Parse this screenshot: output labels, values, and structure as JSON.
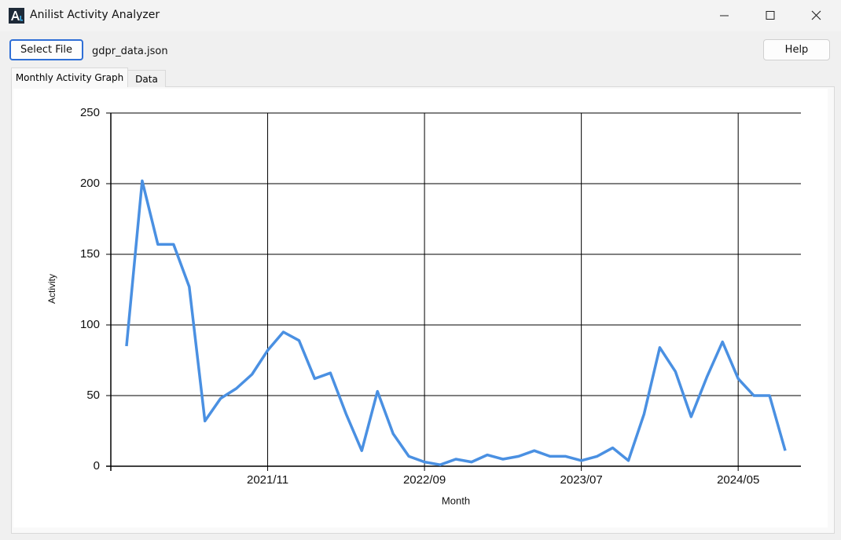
{
  "window": {
    "title": "Anilist Activity Analyzer"
  },
  "toolbar": {
    "select_button": "Select File",
    "file_name": "gdpr_data.json",
    "help_button": "Help"
  },
  "tabs": [
    "Monthly Activity Graph",
    "Data"
  ],
  "chart_data": {
    "type": "line",
    "x_label": "Month",
    "y_label": "Activity",
    "categories": [
      null,
      null,
      null,
      null,
      null,
      null,
      null,
      null,
      null,
      "2021/11",
      null,
      null,
      null,
      null,
      null,
      null,
      null,
      null,
      null,
      "2022/09",
      null,
      null,
      null,
      null,
      null,
      null,
      null,
      null,
      null,
      "2023/07",
      null,
      null,
      null,
      null,
      null,
      null,
      null,
      null,
      null,
      "2024/05",
      null,
      null,
      null
    ],
    "values": [
      85,
      202,
      157,
      157,
      127,
      32,
      48,
      55,
      65,
      82,
      95,
      89,
      62,
      66,
      37,
      11,
      53,
      23,
      7,
      3,
      1,
      5,
      3,
      8,
      5,
      7,
      11,
      7,
      7,
      4,
      7,
      13,
      4,
      37,
      84,
      67,
      35,
      63,
      88,
      62,
      50,
      50,
      11
    ],
    "color": "#4a90e2",
    "ylim": [
      0,
      250
    ],
    "yticks": [
      0,
      50,
      100,
      150,
      200,
      250
    ],
    "grid": true
  }
}
